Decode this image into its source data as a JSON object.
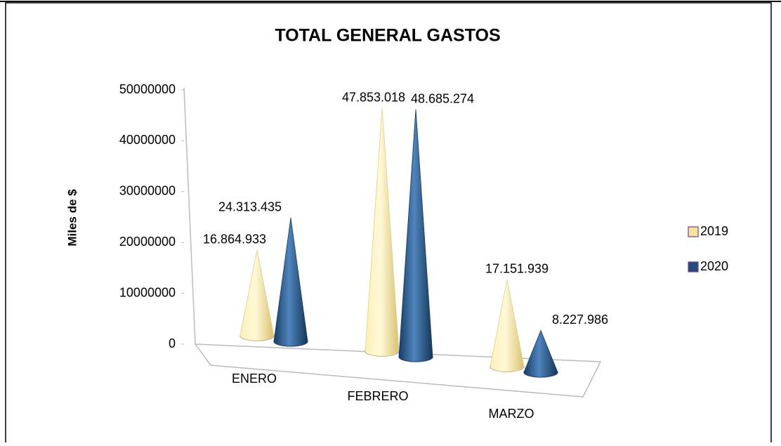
{
  "chart_data": {
    "type": "cone3d",
    "title": "TOTAL GENERAL GASTOS",
    "y_label": "Miles de $",
    "categories": [
      "ENERO",
      "FEBRERO",
      "MARZO"
    ],
    "series": [
      {
        "name": "2019",
        "color": "#f5e49a",
        "values": [
          16864933,
          47853018,
          17151939
        ],
        "value_labels": [
          "16.864.933",
          "47.853.018",
          "17.151.939"
        ]
      },
      {
        "name": "2020",
        "color": "#1f4e79",
        "values": [
          24313435,
          48685274,
          8227986
        ],
        "value_labels": [
          "24.313.435",
          "48.685.274",
          "8.227.986"
        ]
      }
    ],
    "ylim": [
      0,
      50000000
    ],
    "yticks": [
      0,
      10000000,
      20000000,
      30000000,
      40000000,
      50000000
    ],
    "legend": "right"
  }
}
